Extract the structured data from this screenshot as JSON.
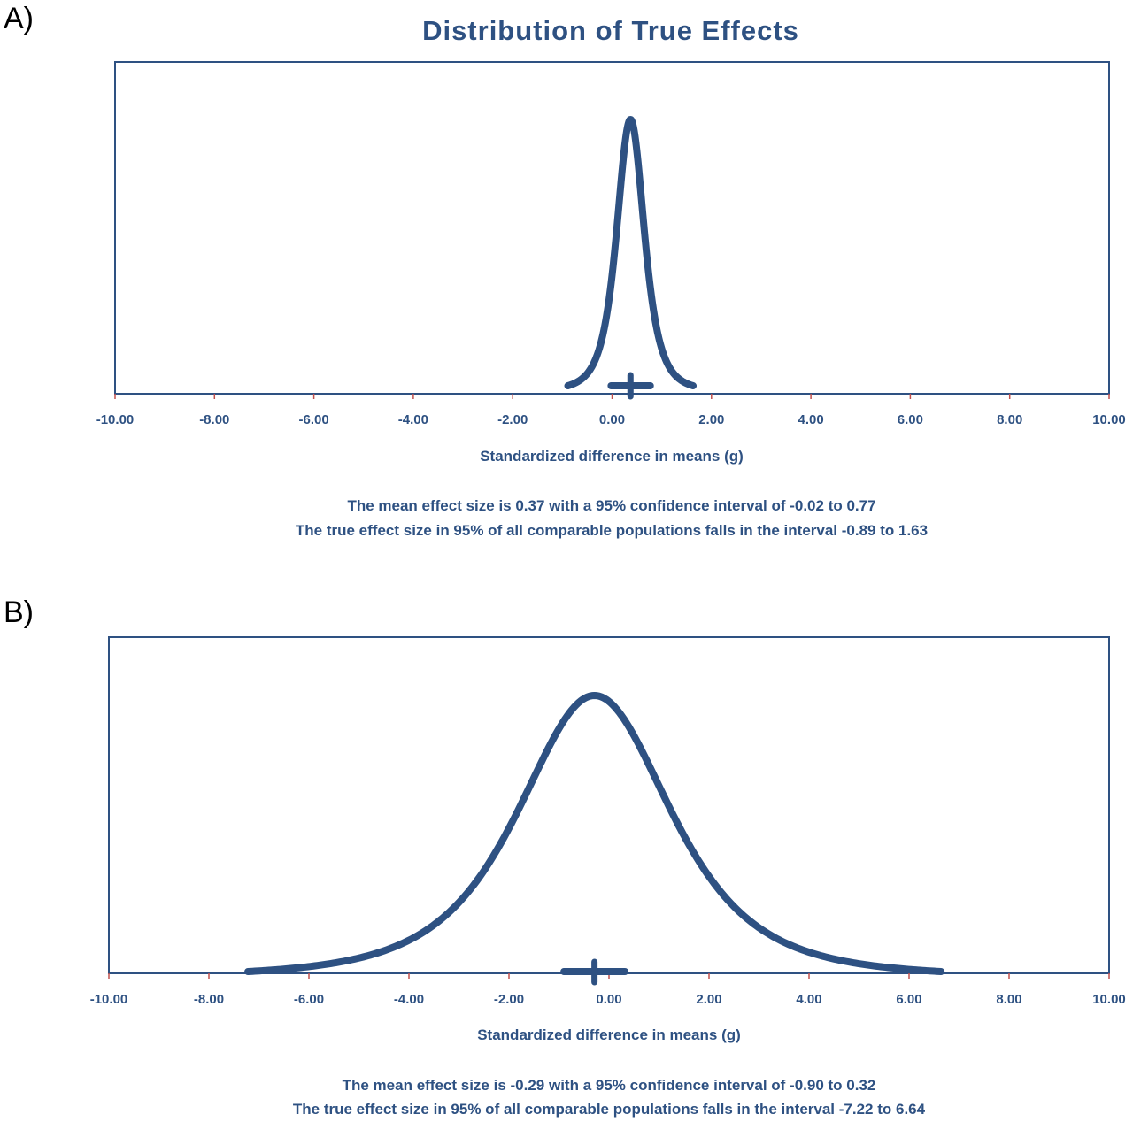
{
  "chart_data": [
    {
      "type": "line",
      "panel_label": "A)",
      "title": "Distribution of True Effects",
      "xlabel": "Standardized difference in means (g)",
      "ylabel": "",
      "xlim": [
        -10,
        10
      ],
      "x_ticks": [
        "-10.00",
        "-8.00",
        "-6.00",
        "-4.00",
        "-2.00",
        "0.00",
        "2.00",
        "4.00",
        "6.00",
        "8.00",
        "10.00"
      ],
      "y_axis_visible": false,
      "mean": 0.37,
      "ci": [
        -0.02,
        0.77
      ],
      "prediction_interval": [
        -0.89,
        1.63
      ],
      "summary": [
        "The mean effect size is 0.37 with a 95% confidence interval of -0.02 to 0.77",
        "The true effect size in 95% of all comparable populations falls in the interval -0.89 to 1.63"
      ],
      "color": "#2e5182"
    },
    {
      "type": "line",
      "panel_label": "B)",
      "title": "",
      "xlabel": "Standardized difference in means (g)",
      "ylabel": "",
      "xlim": [
        -10,
        10
      ],
      "x_ticks": [
        "-10.00",
        "-8.00",
        "-6.00",
        "-4.00",
        "-2.00",
        "0.00",
        "2.00",
        "4.00",
        "6.00",
        "8.00",
        "10.00"
      ],
      "y_axis_visible": false,
      "mean": -0.29,
      "ci": [
        -0.9,
        0.32
      ],
      "prediction_interval": [
        -7.22,
        6.64
      ],
      "summary": [
        "The mean effect size is -0.29 with a 95% confidence interval of -0.90 to 0.32",
        "The true effect size in 95% of all comparable populations falls in the interval -7.22 to 6.64"
      ],
      "color": "#2e5182"
    }
  ]
}
